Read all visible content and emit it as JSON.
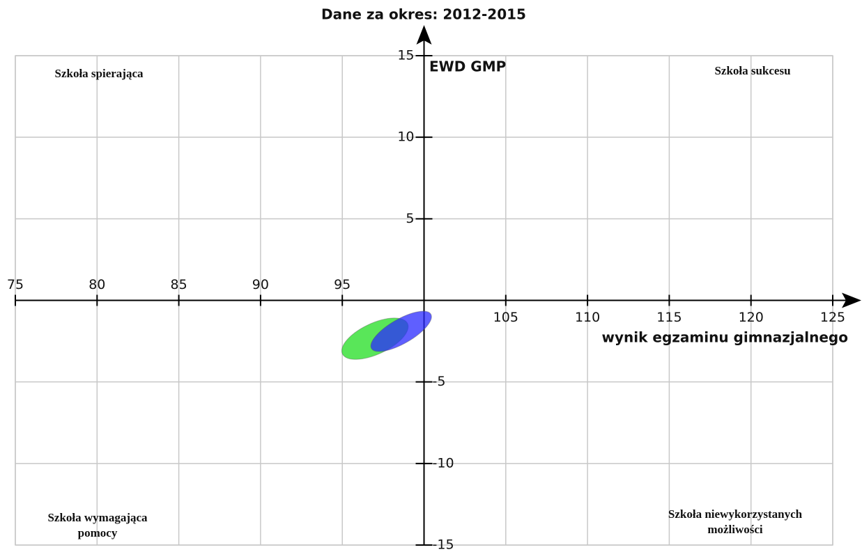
{
  "chart_data": {
    "type": "ellipse",
    "title": "Dane za okres: 2012-2015",
    "x_label": "wynik egzaminu gimnazjalnego",
    "y_label": "EWD GMP",
    "xlim": [
      75,
      125
    ],
    "ylim": [
      -15,
      15
    ],
    "xticks": [
      75,
      80,
      85,
      90,
      95,
      105,
      110,
      115,
      120,
      125
    ],
    "yticks": [
      15,
      10,
      5,
      -5,
      -10,
      -15
    ],
    "grid": true,
    "quadrant_labels": {
      "top_left": [
        "Szkoła spierająca"
      ],
      "top_right": [
        "Szkoła sukcesu"
      ],
      "bottom_left": [
        "Szkoła wymagająca",
        "pomocy"
      ],
      "bottom_right": [
        "Szkoła niewykorzystanych",
        "możliwości"
      ]
    },
    "series": [
      {
        "color": "#22dd22",
        "x": 97,
        "y": -2.35,
        "rx": 2.2,
        "ry": 0.95,
        "angle": 25
      },
      {
        "color": "#2a2aff",
        "x": 98.6,
        "y": -1.9,
        "rx": 2.1,
        "ry": 0.75,
        "angle": 30
      }
    ]
  }
}
